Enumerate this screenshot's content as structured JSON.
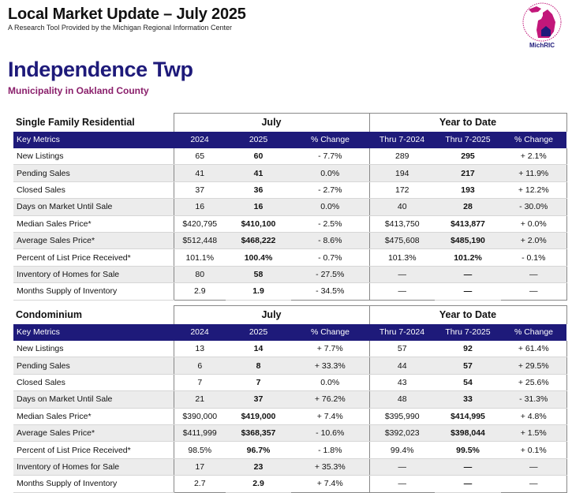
{
  "header": {
    "title": "Local Market Update – July 2025",
    "subtitle": "A Research Tool Provided by the Michigan Regional Information Center"
  },
  "logo": {
    "text": "MichRIC",
    "ring_text": "Michigan Regional Information Center",
    "color": "#c2177a"
  },
  "municipality": {
    "name": "Independence Twp",
    "subtitle": "Municipality in Oakland County"
  },
  "colors": {
    "header_bg": "#1e1a7a",
    "title_purple": "#1e1a7a",
    "subtitle_magenta": "#8a1f6b",
    "row_stripe": "#ececec"
  },
  "sections": [
    {
      "name": "Single Family Residential",
      "group_month": "July",
      "group_ytd": "Year to Date",
      "columns": [
        "Key Metrics",
        "2024",
        "2025",
        "% Change",
        "Thru 7-2024",
        "Thru 7-2025",
        "% Change"
      ],
      "rows": [
        [
          "New Listings",
          "65",
          "60",
          "- 7.7%",
          "289",
          "295",
          "+ 2.1%"
        ],
        [
          "Pending Sales",
          "41",
          "41",
          "0.0%",
          "194",
          "217",
          "+ 11.9%"
        ],
        [
          "Closed Sales",
          "37",
          "36",
          "- 2.7%",
          "172",
          "193",
          "+ 12.2%"
        ],
        [
          "Days on Market Until Sale",
          "16",
          "16",
          "0.0%",
          "40",
          "28",
          "- 30.0%"
        ],
        [
          "Median Sales Price*",
          "$420,795",
          "$410,100",
          "- 2.5%",
          "$413,750",
          "$413,877",
          "+ 0.0%"
        ],
        [
          "Average Sales Price*",
          "$512,448",
          "$468,222",
          "- 8.6%",
          "$475,608",
          "$485,190",
          "+ 2.0%"
        ],
        [
          "Percent of List Price Received*",
          "101.1%",
          "100.4%",
          "- 0.7%",
          "101.3%",
          "101.2%",
          "- 0.1%"
        ],
        [
          "Inventory of Homes for Sale",
          "80",
          "58",
          "- 27.5%",
          "—",
          "—",
          "—"
        ],
        [
          "Months Supply of Inventory",
          "2.9",
          "1.9",
          "- 34.5%",
          "—",
          "—",
          "—"
        ]
      ]
    },
    {
      "name": "Condominium",
      "group_month": "July",
      "group_ytd": "Year to Date",
      "columns": [
        "Key Metrics",
        "2024",
        "2025",
        "% Change",
        "Thru 7-2024",
        "Thru 7-2025",
        "% Change"
      ],
      "rows": [
        [
          "New Listings",
          "13",
          "14",
          "+ 7.7%",
          "57",
          "92",
          "+ 61.4%"
        ],
        [
          "Pending Sales",
          "6",
          "8",
          "+ 33.3%",
          "44",
          "57",
          "+ 29.5%"
        ],
        [
          "Closed Sales",
          "7",
          "7",
          "0.0%",
          "43",
          "54",
          "+ 25.6%"
        ],
        [
          "Days on Market Until Sale",
          "21",
          "37",
          "+ 76.2%",
          "48",
          "33",
          "- 31.3%"
        ],
        [
          "Median Sales Price*",
          "$390,000",
          "$419,000",
          "+ 7.4%",
          "$395,990",
          "$414,995",
          "+ 4.8%"
        ],
        [
          "Average Sales Price*",
          "$411,999",
          "$368,357",
          "- 10.6%",
          "$392,023",
          "$398,044",
          "+ 1.5%"
        ],
        [
          "Percent of List Price Received*",
          "98.5%",
          "96.7%",
          "- 1.8%",
          "99.4%",
          "99.5%",
          "+ 0.1%"
        ],
        [
          "Inventory of Homes for Sale",
          "17",
          "23",
          "+ 35.3%",
          "—",
          "—",
          "—"
        ],
        [
          "Months Supply of Inventory",
          "2.7",
          "2.9",
          "+ 7.4%",
          "—",
          "—",
          "—"
        ]
      ]
    }
  ]
}
